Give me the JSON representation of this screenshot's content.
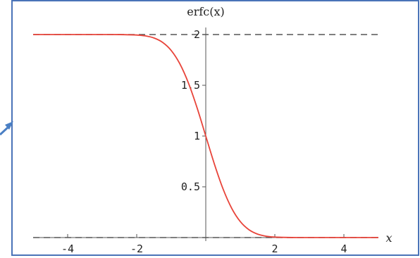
{
  "chart_data": {
    "type": "line",
    "title": "erfc(x)",
    "xlabel": "x",
    "ylabel": "",
    "xlim": [
      -5.0,
      5.0
    ],
    "ylim": [
      0,
      2
    ],
    "x_ticks": [
      -4,
      -2,
      2,
      4
    ],
    "x_tick_labels": [
      "-4",
      "-2",
      "2",
      "4"
    ],
    "y_ticks": [
      0.5,
      1,
      1.5,
      2
    ],
    "y_tick_labels": [
      "0.5",
      "1",
      "1.5",
      "2"
    ],
    "asymptotes": [
      0,
      2
    ],
    "grid": false,
    "series": [
      {
        "color": "#e8443a",
        "x": [
          -5,
          -4,
          -3,
          -2.5,
          -2,
          -1.75,
          -1.5,
          -1.25,
          -1,
          -0.75,
          -0.5,
          -0.25,
          0,
          0.25,
          0.5,
          0.75,
          1,
          1.25,
          1.5,
          1.75,
          2,
          2.5,
          3,
          4,
          5
        ],
        "values": [
          2.0,
          2.0,
          2.0,
          1.9996,
          1.9953,
          1.9867,
          1.9661,
          1.9229,
          1.8427,
          1.7112,
          1.5205,
          1.2763,
          1.0,
          0.7237,
          0.4795,
          0.2888,
          0.1573,
          0.0771,
          0.0339,
          0.0133,
          0.0047,
          0.0004,
          0.0,
          0.0,
          0.0
        ]
      }
    ]
  },
  "colors": {
    "frame": "#4a73b8",
    "axis": "#555555",
    "dash": "#555555",
    "arrow": "#4a7fc4"
  }
}
